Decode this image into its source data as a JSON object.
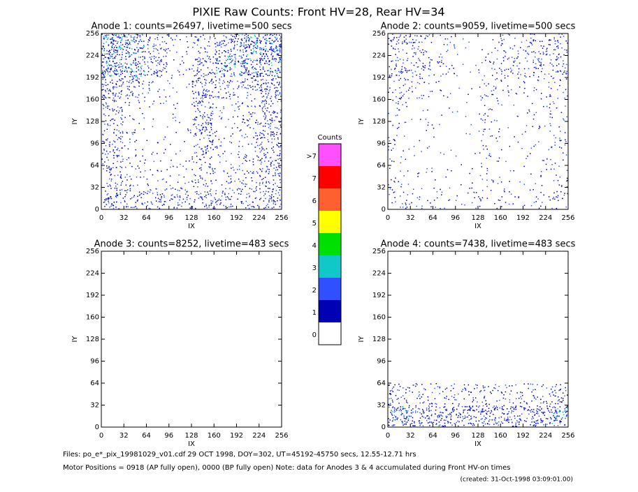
{
  "title": "PIXIE Raw Counts:  Front HV=28, Rear HV=34",
  "chart_data": [
    {
      "type": "heatmap",
      "title": "Anode 1: counts=26497, livetime=500 secs",
      "xlabel": "IX",
      "ylabel": "IY",
      "xlim": [
        0,
        256
      ],
      "ylim": [
        0,
        256
      ],
      "xticks": [
        0,
        32,
        64,
        96,
        128,
        160,
        192,
        224,
        256
      ],
      "yticks": [
        0,
        32,
        64,
        96,
        128,
        160,
        192,
        224,
        256
      ],
      "density": [
        [
          0.4,
          0.3,
          0.3,
          0.3,
          0.3,
          0.3,
          0.3,
          0.4
        ],
        [
          0.3,
          0.15,
          0.1,
          0.1,
          0.3,
          0.15,
          0.2,
          0.4
        ],
        [
          0.3,
          0.1,
          0.05,
          0.05,
          0.3,
          0.1,
          0.2,
          0.4
        ],
        [
          0.3,
          0.1,
          0.05,
          0.05,
          0.4,
          0.1,
          0.2,
          0.4
        ],
        [
          0.3,
          0.1,
          0.05,
          0.05,
          0.4,
          0.1,
          0.2,
          0.4
        ],
        [
          0.5,
          0.3,
          0.1,
          0.05,
          0.5,
          0.3,
          0.3,
          0.5
        ],
        [
          0.8,
          0.6,
          0.4,
          0.1,
          0.4,
          0.6,
          0.6,
          0.7
        ],
        [
          0.8,
          0.6,
          0.3,
          0.1,
          0.2,
          0.5,
          0.7,
          0.8
        ]
      ]
    },
    {
      "type": "heatmap",
      "title": "Anode 2: counts=9059, livetime=500 secs",
      "xlabel": "IX",
      "ylabel": "IY",
      "xlim": [
        0,
        256
      ],
      "ylim": [
        0,
        256
      ],
      "xticks": [
        0,
        32,
        64,
        96,
        128,
        160,
        192,
        224,
        256
      ],
      "yticks": [
        0,
        32,
        64,
        96,
        128,
        160,
        192,
        224,
        256
      ],
      "density": [
        [
          0.15,
          0.1,
          0.1,
          0.1,
          0.1,
          0.1,
          0.1,
          0.15
        ],
        [
          0.1,
          0.05,
          0.03,
          0.03,
          0.1,
          0.04,
          0.06,
          0.12
        ],
        [
          0.1,
          0.04,
          0.02,
          0.02,
          0.1,
          0.03,
          0.06,
          0.12
        ],
        [
          0.1,
          0.04,
          0.02,
          0.02,
          0.12,
          0.03,
          0.06,
          0.12
        ],
        [
          0.1,
          0.04,
          0.02,
          0.02,
          0.12,
          0.03,
          0.06,
          0.12
        ],
        [
          0.2,
          0.15,
          0.05,
          0.02,
          0.15,
          0.1,
          0.1,
          0.15
        ],
        [
          0.3,
          0.25,
          0.15,
          0.03,
          0.12,
          0.25,
          0.25,
          0.25
        ],
        [
          0.3,
          0.25,
          0.1,
          0.03,
          0.05,
          0.15,
          0.25,
          0.3
        ]
      ]
    },
    {
      "type": "heatmap",
      "title": "Anode 3: counts=8252, livetime=483 secs",
      "xlabel": "IX",
      "ylabel": "IY",
      "xlim": [
        0,
        256
      ],
      "ylim": [
        0,
        256
      ],
      "xticks": [
        0,
        32,
        64,
        96,
        128,
        160,
        192,
        224,
        256
      ],
      "yticks": [
        0,
        32,
        64,
        96,
        128,
        160,
        192,
        224,
        256
      ],
      "density": [
        [
          0,
          0,
          0,
          0,
          0,
          0,
          0,
          0
        ],
        [
          0,
          0,
          0,
          0,
          0,
          0,
          0,
          0
        ],
        [
          0,
          0,
          0,
          0,
          0,
          0,
          0,
          0
        ],
        [
          0,
          0,
          0,
          0,
          0,
          0,
          0,
          0
        ],
        [
          0,
          0,
          0,
          0,
          0,
          0,
          0,
          0
        ],
        [
          0,
          0,
          0,
          0,
          0,
          0,
          0,
          0
        ],
        [
          0,
          0,
          0,
          0,
          0,
          0,
          0,
          0
        ],
        [
          0,
          0,
          0,
          0,
          0,
          0,
          0,
          0
        ]
      ]
    },
    {
      "type": "heatmap",
      "title": "Anode 4: counts=7438, livetime=483 secs",
      "xlabel": "IX",
      "ylabel": "IY",
      "xlim": [
        0,
        256
      ],
      "ylim": [
        0,
        256
      ],
      "xticks": [
        0,
        32,
        64,
        96,
        128,
        160,
        192,
        224,
        256
      ],
      "yticks": [
        0,
        32,
        64,
        96,
        128,
        160,
        192,
        224,
        256
      ],
      "density": [
        [
          0.6,
          0.5,
          0.5,
          0.5,
          0.5,
          0.5,
          0.5,
          0.6
        ],
        [
          0.3,
          0.2,
          0.2,
          0.2,
          0.2,
          0.2,
          0.2,
          0.3
        ],
        [
          0,
          0,
          0,
          0,
          0,
          0,
          0,
          0
        ],
        [
          0,
          0,
          0,
          0,
          0,
          0,
          0,
          0
        ],
        [
          0,
          0,
          0,
          0,
          0,
          0,
          0,
          0
        ],
        [
          0,
          0,
          0,
          0,
          0,
          0,
          0,
          0
        ],
        [
          0,
          0,
          0,
          0,
          0,
          0,
          0,
          0
        ],
        [
          0,
          0,
          0,
          0,
          0,
          0,
          0,
          0
        ]
      ]
    }
  ],
  "colorbar": {
    "title": "Counts",
    "labels": [
      "0",
      "1",
      "2",
      "3",
      "4",
      "5",
      "6",
      "7",
      ">7"
    ],
    "colors": [
      "#ffffff",
      "#0000b4",
      "#3050ff",
      "#10c8c8",
      "#00e000",
      "#ffff00",
      "#ff6030",
      "#ff0000",
      "#ff50ff"
    ]
  },
  "footer": [
    "Files: po_e*_pix_19981029_v01.cdf    29 OCT 1998, DOY=302, UT=45192-45750 secs, 12.55-12.71 hrs",
    "Motor Positions = 0918 (AP fully open), 0000 (BP fully open)    Note: data for Anodes 3 & 4 accumulated during Front HV-on times",
    "(created: 31-Oct-1998 03:09:01.00)"
  ]
}
